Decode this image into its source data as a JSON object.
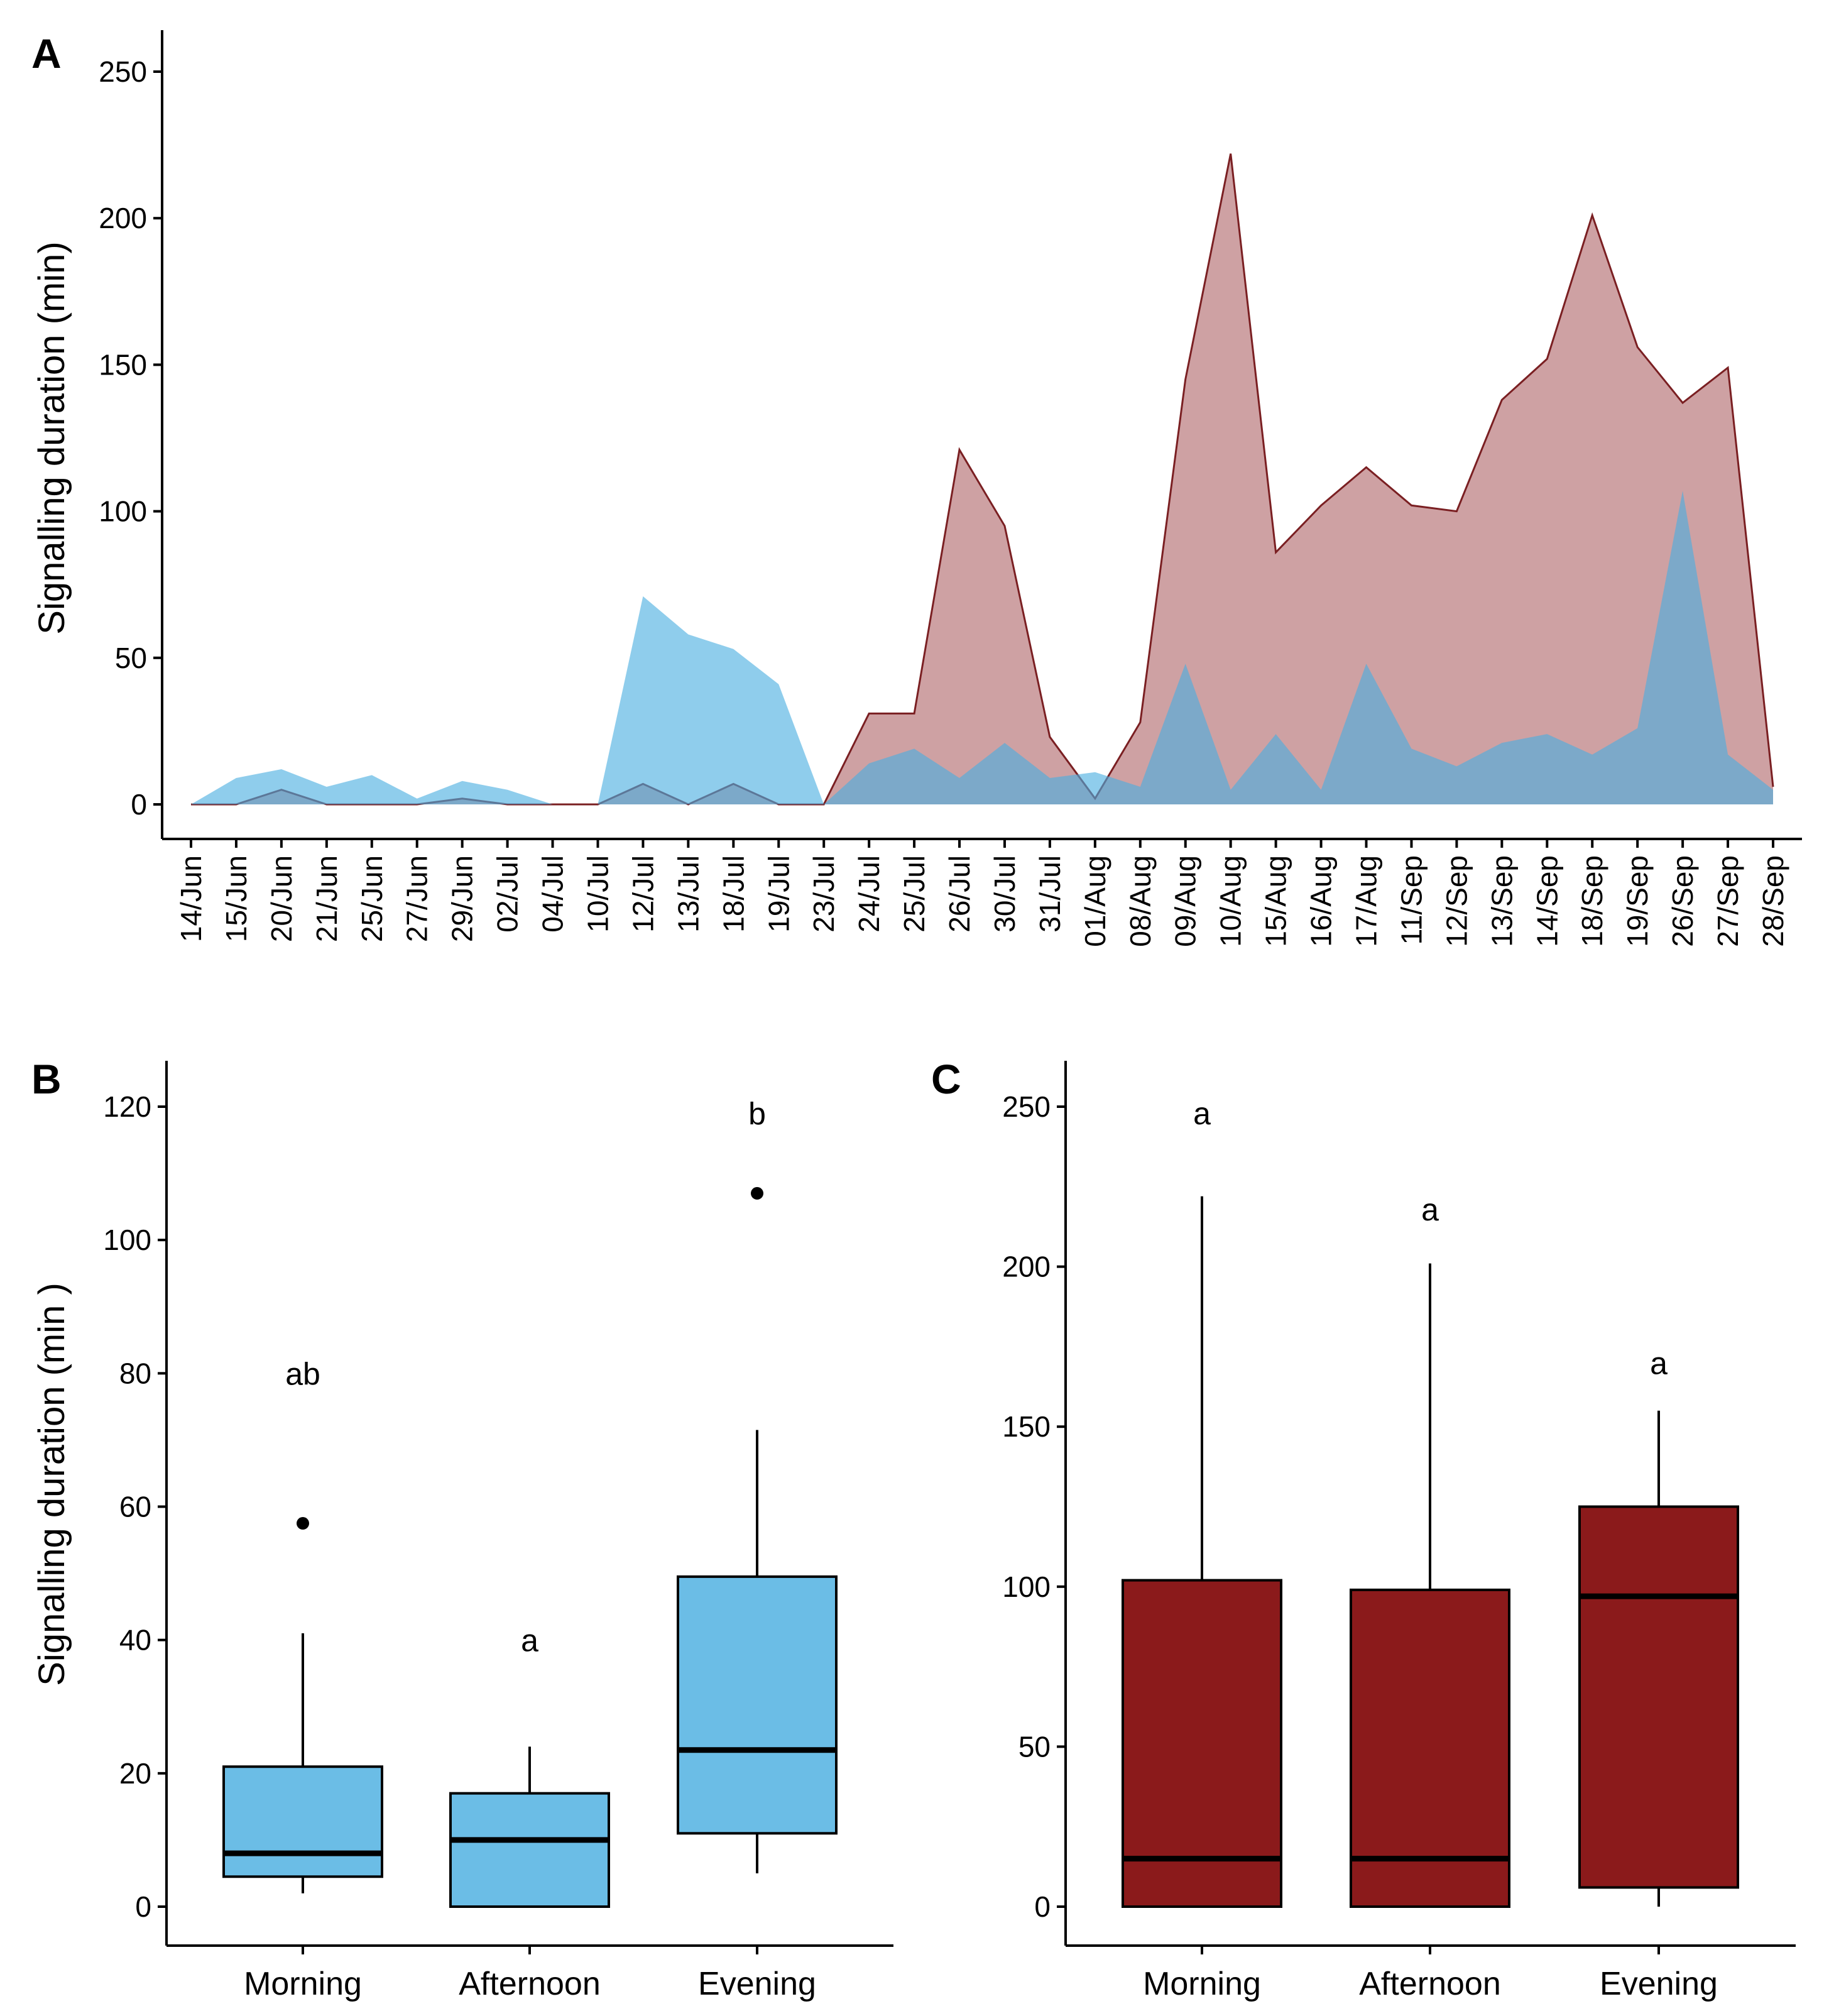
{
  "colors": {
    "blue_fill": "#4aafe0",
    "red_fill": "#a65457",
    "red_line": "#7a1f22",
    "box_blue": "#6bbde6",
    "box_red": "#8b1a1b",
    "axis": "#000000"
  },
  "chart_data": [
    {
      "panel": "A",
      "type": "area",
      "ylabel": "Signalling duration (min)",
      "xlabel": "",
      "ylim": [
        0,
        250
      ],
      "yticks": [
        0,
        50,
        100,
        150,
        200,
        250
      ],
      "categories": [
        "14/Jun",
        "15/Jun",
        "20/Jun",
        "21/Jun",
        "25/Jun",
        "27/Jun",
        "29/Jun",
        "02/Jul",
        "04/Jul",
        "10/Jul",
        "12/Jul",
        "13/Jul",
        "18/Jul",
        "19/Jul",
        "23/Jul",
        "24/Jul",
        "25/Jul",
        "26/Jul",
        "30/Jul",
        "31/Jul",
        "01/Aug",
        "08/Aug",
        "09/Aug",
        "10/Aug",
        "15/Aug",
        "16/Aug",
        "17/Aug",
        "11/Sep",
        "12/Sep",
        "13/Sep",
        "14/Sep",
        "18/Sep",
        "19/Sep",
        "26/Sep",
        "27/Sep",
        "28/Sep"
      ],
      "series": [
        {
          "name": "red",
          "values": [
            0,
            0,
            5,
            0,
            0,
            0,
            2,
            0,
            0,
            0,
            7,
            0,
            7,
            0,
            0,
            31,
            31,
            121,
            95,
            23,
            2,
            28,
            145,
            222,
            86,
            102,
            115,
            102,
            100,
            138,
            152,
            201,
            156,
            137,
            149,
            6
          ]
        },
        {
          "name": "blue",
          "values": [
            0,
            9,
            12,
            6,
            10,
            2,
            8,
            5,
            0,
            0,
            71,
            58,
            53,
            41,
            0,
            14,
            19,
            9,
            21,
            9,
            11,
            6,
            48,
            5,
            24,
            5,
            48,
            19,
            13,
            21,
            24,
            17,
            26,
            107,
            17,
            5
          ]
        }
      ]
    },
    {
      "panel": "B",
      "type": "box",
      "ylabel": "Signalling duration (min )",
      "ylim": [
        0,
        120
      ],
      "yticks": [
        0,
        20,
        40,
        60,
        80,
        100,
        120
      ],
      "categories": [
        "Morning",
        "Afternoon",
        "Evening"
      ],
      "boxes": [
        {
          "category": "Morning",
          "low": 2,
          "q1": 4.5,
          "median": 8,
          "q3": 21,
          "high": 41,
          "outliers": [
            57.5
          ],
          "letter": "ab"
        },
        {
          "category": "Afternoon",
          "low": 0,
          "q1": 0,
          "median": 10,
          "q3": 17,
          "high": 24,
          "outliers": [],
          "letter": "a"
        },
        {
          "category": "Evening",
          "low": 5,
          "q1": 11,
          "median": 23.5,
          "q3": 49.5,
          "high": 71.5,
          "outliers": [
            107
          ],
          "letter": "b"
        }
      ],
      "letter_y": [
        80,
        40,
        119
      ]
    },
    {
      "panel": "C",
      "type": "box",
      "ylabel": "",
      "ylim": [
        0,
        250
      ],
      "yticks": [
        0,
        50,
        100,
        150,
        200,
        250
      ],
      "categories": [
        "Morning",
        "Afternoon",
        "Evening"
      ],
      "boxes": [
        {
          "category": "Morning",
          "low": 0,
          "q1": 0,
          "median": 15,
          "q3": 102,
          "high": 222,
          "outliers": [],
          "letter": "a"
        },
        {
          "category": "Afternoon",
          "low": 0,
          "q1": 0,
          "median": 15,
          "q3": 99,
          "high": 201,
          "outliers": [],
          "letter": "a"
        },
        {
          "category": "Evening",
          "low": 0,
          "q1": 6,
          "median": 97,
          "q3": 125,
          "high": 155,
          "outliers": [],
          "letter": "a"
        }
      ],
      "letter_y": [
        248,
        218,
        170
      ]
    }
  ]
}
